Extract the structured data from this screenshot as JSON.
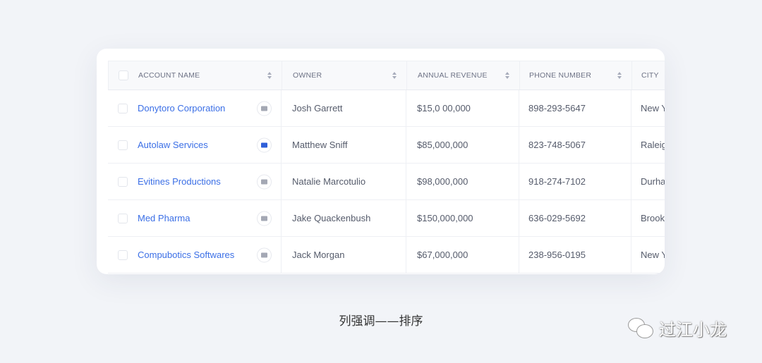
{
  "table": {
    "headers": [
      "ACCOUNT NAME",
      "OWNER",
      "ANNUAL REVENUE",
      "PHONE NUMBER",
      "CITY"
    ],
    "rows": [
      {
        "account": "Donytoro Corporation",
        "owner": "Josh Garrett",
        "revenue": "$15,0 00,000",
        "phone": "898-293-5647",
        "city": "New York",
        "active": false
      },
      {
        "account": "Autolaw Services",
        "owner": "Matthew Sniff",
        "revenue": "$85,000,000",
        "phone": "823-748-5067",
        "city": "Raleigh",
        "active": true
      },
      {
        "account": "Evitines Productions",
        "owner": "Natalie Marcotulio",
        "revenue": "$98,000,000",
        "phone": "918-274-7102",
        "city": "Durham",
        "active": false
      },
      {
        "account": "Med Pharma",
        "owner": "Jake Quackenbush",
        "revenue": "$150,000,000",
        "phone": "636-029-5692",
        "city": "Brooklyn",
        "active": false
      },
      {
        "account": "Compubotics Softwares",
        "owner": "Jack Morgan",
        "revenue": "$67,000,000",
        "phone": "238-956-0195",
        "city": "New York",
        "active": false
      }
    ]
  },
  "caption": "列强调——排序",
  "watermark": "过江小龙",
  "colors": {
    "link": "#3b6fe6",
    "active_icon": "#2f5fd9"
  }
}
